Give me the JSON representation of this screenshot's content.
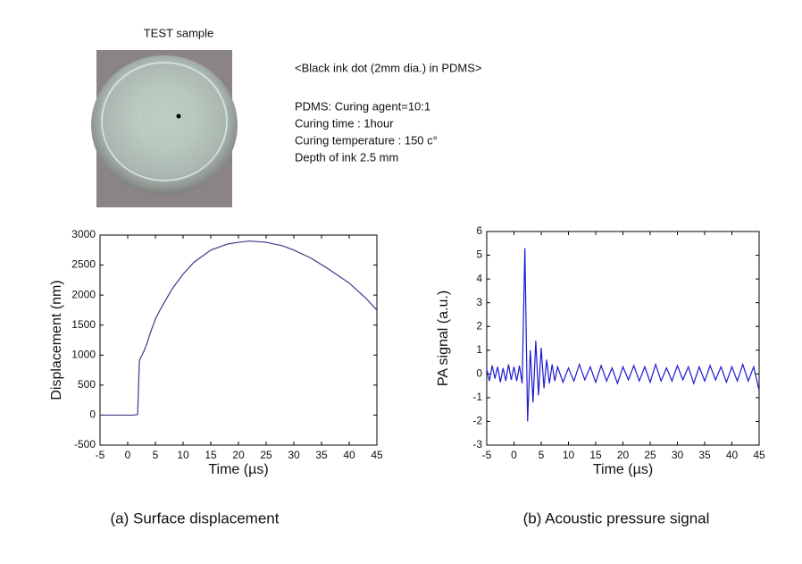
{
  "header": {
    "photo_label": "TEST sample",
    "description": [
      "<Black ink dot (2mm dia.) in PDMS>",
      "PDMS: Curing agent=10:1",
      "Curing time : 1hour",
      "Curing temperature : 150 c°",
      "Depth of ink 2.5 mm"
    ]
  },
  "chart_data": [
    {
      "type": "line",
      "caption": "(a) Surface displacement",
      "xlabel": "Time (µs)",
      "ylabel": "Displacement (nm)",
      "x": [
        -5,
        0,
        1,
        1.8,
        2.1,
        2.3,
        2.6,
        3,
        3.5,
        4,
        5,
        6,
        8,
        10,
        12,
        15,
        18,
        20,
        22,
        25,
        28,
        30,
        33,
        36,
        40,
        43,
        45
      ],
      "values": [
        0,
        0,
        0,
        10,
        900,
        950,
        1000,
        1080,
        1200,
        1350,
        1600,
        1780,
        2100,
        2350,
        2550,
        2750,
        2850,
        2880,
        2900,
        2880,
        2820,
        2750,
        2620,
        2450,
        2200,
        1950,
        1750
      ],
      "color": "#3a3a8a",
      "xlim": [
        -5,
        45
      ],
      "xticks": [
        -5,
        0,
        5,
        10,
        15,
        20,
        25,
        30,
        35,
        40,
        45
      ],
      "ylim": [
        -500,
        3000
      ],
      "yticks": [
        -500,
        0,
        500,
        1000,
        1500,
        2000,
        2500,
        3000
      ]
    },
    {
      "type": "line",
      "caption": "(b) Acoustic pressure signal",
      "xlabel": "Time (µs)",
      "ylabel": "PA signal (a.u.)",
      "x": [
        -5,
        -4.5,
        -4,
        -3.5,
        -3,
        -2.5,
        -2,
        -1.5,
        -1,
        -0.5,
        0,
        0.5,
        1,
        1.5,
        2,
        2.5,
        3,
        3.5,
        4,
        4.5,
        5,
        5.5,
        6,
        6.5,
        7,
        7.5,
        8,
        9,
        10,
        11,
        12,
        13,
        14,
        15,
        16,
        17,
        18,
        19,
        20,
        21,
        22,
        23,
        24,
        25,
        26,
        27,
        28,
        29,
        30,
        31,
        32,
        33,
        34,
        35,
        36,
        37,
        38,
        39,
        40,
        41,
        42,
        43,
        44,
        45
      ],
      "values": [
        0.2,
        -0.3,
        0.35,
        -0.2,
        0.3,
        -0.35,
        0.25,
        -0.3,
        0.4,
        -0.25,
        0.3,
        -0.3,
        0.35,
        -0.4,
        5.3,
        -2.0,
        1.0,
        -1.2,
        1.4,
        -0.9,
        1.1,
        -0.6,
        0.6,
        -0.4,
        0.4,
        -0.3,
        0.3,
        -0.35,
        0.25,
        -0.3,
        0.4,
        -0.25,
        0.3,
        -0.35,
        0.35,
        -0.3,
        0.25,
        -0.4,
        0.3,
        -0.25,
        0.35,
        -0.3,
        0.3,
        -0.35,
        0.4,
        -0.3,
        0.25,
        -0.3,
        0.35,
        -0.25,
        0.3,
        -0.4,
        0.3,
        -0.3,
        0.35,
        -0.25,
        0.3,
        -0.35,
        0.3,
        -0.3,
        0.4,
        -0.3,
        0.3,
        -0.7
      ],
      "color": "#1a1ad0",
      "xlim": [
        -5,
        45
      ],
      "xticks": [
        -5,
        0,
        5,
        10,
        15,
        20,
        25,
        30,
        35,
        40,
        45
      ],
      "ylim": [
        -3,
        6
      ],
      "yticks": [
        -3,
        -2,
        -1,
        0,
        1,
        2,
        3,
        4,
        5,
        6
      ]
    }
  ]
}
